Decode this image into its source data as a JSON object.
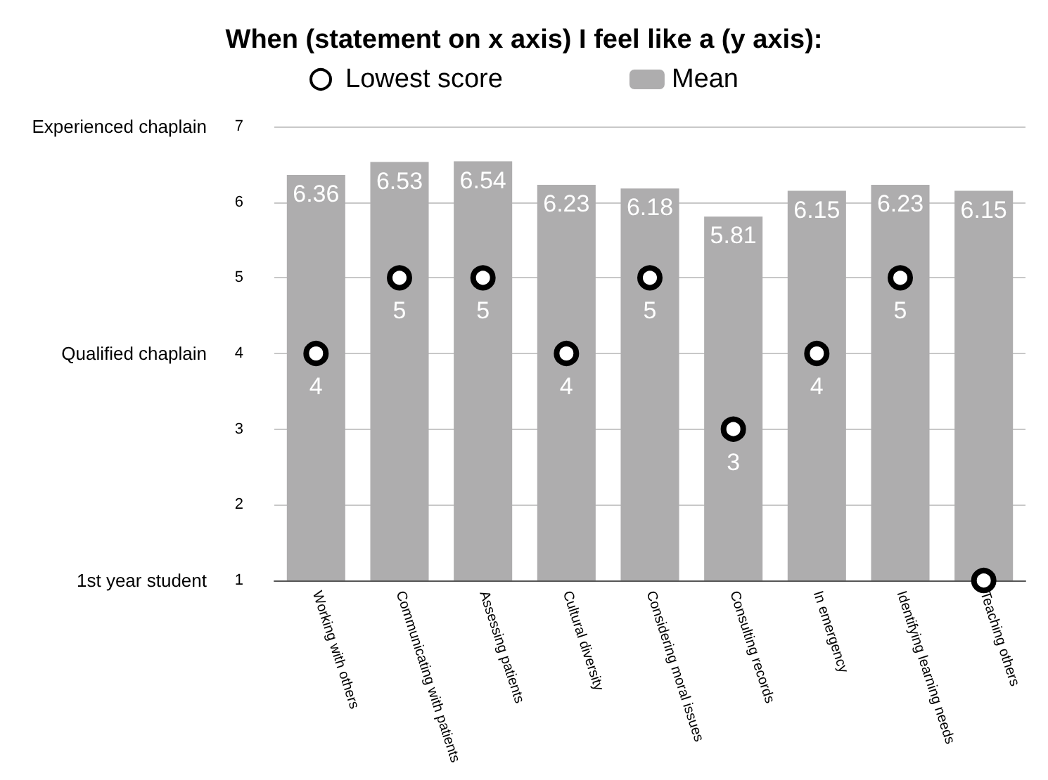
{
  "chart_data": {
    "type": "bar",
    "title": "When (statement on x axis) I feel like a (y axis):",
    "categories": [
      "Working with others",
      "Communicating with patients",
      "Assessing patients",
      "Cultural diversity",
      "Considering moral issues",
      "Consulting records",
      "In emergency",
      "Identifying learning needs",
      "Teaching others"
    ],
    "series": [
      {
        "name": "Lowest score",
        "type": "scatter",
        "color": "#000000",
        "marker": "circle",
        "values": [
          4,
          5,
          5,
          4,
          5,
          3,
          4,
          5,
          1
        ],
        "value_labels": [
          "4",
          "5",
          "5",
          "4",
          "5",
          "3",
          "4",
          "5",
          null
        ]
      },
      {
        "name": "Mean",
        "type": "bar",
        "color": "#aeadae",
        "values": [
          6.36,
          6.53,
          6.54,
          6.23,
          6.18,
          5.81,
          6.15,
          6.23,
          6.15
        ],
        "value_labels": [
          "6.36",
          "6.53",
          "6.54",
          "6.23",
          "6.18",
          "5.81",
          "6.15",
          "6.23",
          "6.15"
        ]
      }
    ],
    "ylim": [
      1,
      7
    ],
    "yticks": [
      1,
      2,
      3,
      4,
      5,
      6,
      7
    ],
    "annotations": [
      "Experienced chaplain",
      "Qualified chaplain",
      "1st year student"
    ],
    "grid": "y",
    "legend": "top"
  }
}
